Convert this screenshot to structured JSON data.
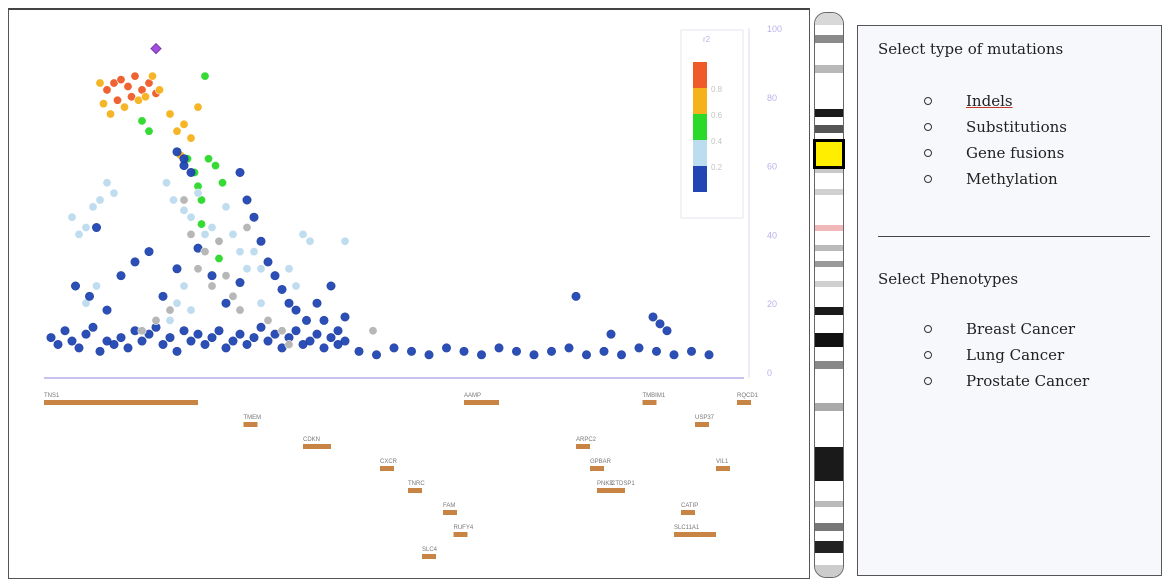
{
  "mutation_panel": {
    "title": "Select type of mutations",
    "options": [
      {
        "label": "Indels",
        "active": true
      },
      {
        "label": "Substitutions",
        "active": false
      },
      {
        "label": "Gene fusions",
        "active": false
      },
      {
        "label": "Methylation",
        "active": false
      }
    ]
  },
  "phenotype_panel": {
    "title": "Select Phenotypes",
    "options": [
      {
        "label": "Breast Cancer"
      },
      {
        "label": "Lung Cancer"
      },
      {
        "label": "Prostate Cancer"
      }
    ]
  },
  "colors": {
    "r2_high": "#ef5a28",
    "r2_mid_high": "#f6b21b",
    "r2_mid": "#2bd92b",
    "r2_low": "#bcdcef",
    "r2_lowest": "#2146b4",
    "grey": "#b4b4b4",
    "lead_snp": "#a44ee0",
    "gene_bar": "#c88444",
    "selection_marker": "#ffee00"
  },
  "chart_data": {
    "type": "scatter",
    "title": "",
    "xlabel": "",
    "ylabel": "",
    "ylim": [
      0,
      100
    ],
    "y_ticks": [
      "100",
      "80",
      "60",
      "40",
      "20",
      "0"
    ],
    "legend": {
      "placement": "top-right",
      "header": "r2",
      "labels": [
        "0.8",
        "0.6",
        "0.4",
        "0.2"
      ]
    },
    "series": [
      {
        "name": "0.8",
        "color": "r2_high",
        "points": [
          [
            2.18,
            82
          ],
          [
            2.2,
            84
          ],
          [
            2.22,
            85
          ],
          [
            2.24,
            83
          ],
          [
            2.26,
            86
          ],
          [
            2.28,
            82
          ],
          [
            2.3,
            84
          ],
          [
            2.32,
            81
          ],
          [
            2.21,
            79
          ],
          [
            2.25,
            80
          ]
        ]
      },
      {
        "name": "0.6",
        "color": "r2_mid_high",
        "points": [
          [
            2.17,
            78
          ],
          [
            2.19,
            75
          ],
          [
            2.23,
            77
          ],
          [
            2.27,
            79
          ],
          [
            2.29,
            80
          ],
          [
            2.31,
            86
          ],
          [
            2.33,
            82
          ],
          [
            2.16,
            84
          ],
          [
            2.36,
            75
          ],
          [
            2.38,
            70
          ],
          [
            2.4,
            72
          ],
          [
            2.42,
            68
          ],
          [
            2.39,
            63
          ],
          [
            2.44,
            77
          ]
        ]
      },
      {
        "name": "0.4",
        "color": "r2_mid",
        "points": [
          [
            2.28,
            73
          ],
          [
            2.3,
            70
          ],
          [
            2.46,
            86
          ],
          [
            2.41,
            62
          ],
          [
            2.43,
            58
          ],
          [
            2.44,
            54
          ],
          [
            2.45,
            50
          ],
          [
            2.47,
            62
          ],
          [
            2.49,
            60
          ],
          [
            2.51,
            55
          ],
          [
            2.45,
            43
          ],
          [
            2.5,
            33
          ]
        ]
      },
      {
        "name": "0.2",
        "color": "r2_low",
        "points": [
          [
            2.08,
            45
          ],
          [
            2.1,
            40
          ],
          [
            2.12,
            42
          ],
          [
            2.14,
            48
          ],
          [
            2.16,
            50
          ],
          [
            2.18,
            55
          ],
          [
            2.2,
            52
          ],
          [
            2.35,
            55
          ],
          [
            2.37,
            50
          ],
          [
            2.4,
            47
          ],
          [
            2.42,
            45
          ],
          [
            2.44,
            52
          ],
          [
            2.46,
            40
          ],
          [
            2.48,
            42
          ],
          [
            2.5,
            38
          ],
          [
            2.52,
            48
          ],
          [
            2.54,
            40
          ],
          [
            2.56,
            35
          ],
          [
            2.58,
            30
          ],
          [
            2.6,
            35
          ],
          [
            2.62,
            30
          ],
          [
            2.7,
            30
          ],
          [
            2.72,
            25
          ],
          [
            2.4,
            25
          ],
          [
            2.38,
            20
          ],
          [
            2.36,
            15
          ],
          [
            2.42,
            18
          ],
          [
            2.15,
            25
          ],
          [
            2.12,
            20
          ],
          [
            2.74,
            40
          ],
          [
            2.76,
            38
          ],
          [
            2.86,
            38
          ],
          [
            2.62,
            20
          ]
        ]
      },
      {
        "name": "0.0",
        "color": "r2_lowest",
        "points": [
          [
            2.02,
            10
          ],
          [
            2.04,
            8
          ],
          [
            2.06,
            12
          ],
          [
            2.08,
            9
          ],
          [
            2.1,
            7
          ],
          [
            2.12,
            11
          ],
          [
            2.14,
            13
          ],
          [
            2.16,
            6
          ],
          [
            2.18,
            9
          ],
          [
            2.2,
            8
          ],
          [
            2.22,
            10
          ],
          [
            2.24,
            7
          ],
          [
            2.26,
            12
          ],
          [
            2.28,
            9
          ],
          [
            2.3,
            11
          ],
          [
            2.32,
            13
          ],
          [
            2.34,
            8
          ],
          [
            2.36,
            10
          ],
          [
            2.38,
            6
          ],
          [
            2.4,
            12
          ],
          [
            2.42,
            9
          ],
          [
            2.44,
            11
          ],
          [
            2.46,
            8
          ],
          [
            2.48,
            10
          ],
          [
            2.5,
            12
          ],
          [
            2.52,
            7
          ],
          [
            2.54,
            9
          ],
          [
            2.56,
            11
          ],
          [
            2.58,
            8
          ],
          [
            2.6,
            10
          ],
          [
            2.62,
            13
          ],
          [
            2.64,
            9
          ],
          [
            2.66,
            11
          ],
          [
            2.68,
            7
          ],
          [
            2.7,
            10
          ],
          [
            2.72,
            12
          ],
          [
            2.74,
            8
          ],
          [
            2.76,
            9
          ],
          [
            2.78,
            11
          ],
          [
            2.8,
            7
          ],
          [
            2.82,
            10
          ],
          [
            2.84,
            8
          ],
          [
            2.86,
            9
          ],
          [
            2.9,
            6
          ],
          [
            2.95,
            5
          ],
          [
            3.0,
            7
          ],
          [
            3.05,
            6
          ],
          [
            3.1,
            5
          ],
          [
            3.15,
            7
          ],
          [
            3.2,
            6
          ],
          [
            3.25,
            5
          ],
          [
            3.3,
            7
          ],
          [
            3.35,
            6
          ],
          [
            3.4,
            5
          ],
          [
            3.45,
            6
          ],
          [
            3.5,
            7
          ],
          [
            3.55,
            5
          ],
          [
            3.6,
            6
          ],
          [
            3.65,
            5
          ],
          [
            3.7,
            7
          ],
          [
            3.75,
            6
          ],
          [
            3.8,
            5
          ],
          [
            3.85,
            6
          ],
          [
            3.9,
            5
          ],
          [
            2.09,
            25
          ],
          [
            2.13,
            22
          ],
          [
            2.18,
            18
          ],
          [
            2.22,
            28
          ],
          [
            2.26,
            32
          ],
          [
            2.3,
            35
          ],
          [
            2.34,
            22
          ],
          [
            2.38,
            30
          ],
          [
            2.4,
            60
          ],
          [
            2.44,
            36
          ],
          [
            2.48,
            28
          ],
          [
            2.52,
            20
          ],
          [
            2.56,
            26
          ],
          [
            2.62,
            38
          ],
          [
            2.64,
            32
          ],
          [
            2.66,
            28
          ],
          [
            2.68,
            24
          ],
          [
            2.7,
            20
          ],
          [
            2.72,
            18
          ],
          [
            2.75,
            15
          ],
          [
            2.78,
            20
          ],
          [
            2.8,
            15
          ],
          [
            2.82,
            25
          ],
          [
            2.84,
            12
          ],
          [
            2.86,
            16
          ],
          [
            2.4,
            62
          ],
          [
            2.42,
            58
          ],
          [
            2.38,
            64
          ],
          [
            2.6,
            45
          ],
          [
            2.58,
            50
          ],
          [
            3.52,
            22
          ],
          [
            3.62,
            11
          ],
          [
            3.74,
            16
          ],
          [
            3.76,
            14
          ],
          [
            3.78,
            12
          ],
          [
            2.15,
            42
          ],
          [
            2.56,
            58
          ]
        ]
      },
      {
        "name": "grey",
        "color": "grey",
        "points": [
          [
            2.4,
            50
          ],
          [
            2.42,
            40
          ],
          [
            2.46,
            35
          ],
          [
            2.44,
            30
          ],
          [
            2.48,
            25
          ],
          [
            2.5,
            38
          ],
          [
            2.52,
            28
          ],
          [
            2.54,
            22
          ],
          [
            2.32,
            15
          ],
          [
            2.36,
            18
          ],
          [
            2.28,
            12
          ],
          [
            2.58,
            42
          ],
          [
            2.56,
            18
          ],
          [
            2.64,
            15
          ],
          [
            2.68,
            12
          ],
          [
            2.94,
            12
          ],
          [
            2.7,
            8
          ]
        ]
      },
      {
        "name": "lead",
        "color": "lead_snp",
        "points": [
          [
            2.32,
            94
          ]
        ]
      }
    ],
    "genes": [
      {
        "name": "TNS1",
        "start": 2.0,
        "end": 2.44,
        "row": 1
      },
      {
        "name": "TMEM",
        "start": 2.57,
        "end": 2.59,
        "row": 2
      },
      {
        "name": "CDKN",
        "start": 2.74,
        "end": 2.82,
        "row": 3
      },
      {
        "name": "CXCR",
        "start": 2.96,
        "end": 3.0,
        "row": 4
      },
      {
        "name": "TNRC",
        "start": 3.04,
        "end": 3.06,
        "row": 5
      },
      {
        "name": "FAM",
        "start": 3.14,
        "end": 3.18,
        "row": 6
      },
      {
        "name": "RUFY4",
        "start": 3.17,
        "end": 3.19,
        "row": 7
      },
      {
        "name": "SLC4",
        "start": 3.08,
        "end": 3.12,
        "row": 8
      },
      {
        "name": "ARPC2",
        "start": 3.52,
        "end": 3.54,
        "row": 3
      },
      {
        "name": "GPBAR",
        "start": 3.56,
        "end": 3.58,
        "row": 4
      },
      {
        "name": "AAMP",
        "start": 3.2,
        "end": 3.3,
        "row": 1
      },
      {
        "name": "PNKD",
        "start": 3.58,
        "end": 3.6,
        "row": 5
      },
      {
        "name": "TMBIM1",
        "start": 3.71,
        "end": 3.75,
        "row": 1
      },
      {
        "name": "CATIP",
        "start": 3.82,
        "end": 3.84,
        "row": 6
      },
      {
        "name": "SLC11A1",
        "start": 3.8,
        "end": 3.92,
        "row": 7
      },
      {
        "name": "CTDSP1",
        "start": 3.62,
        "end": 3.66,
        "row": 5
      },
      {
        "name": "VIL1",
        "start": 3.92,
        "end": 3.95,
        "row": 4
      },
      {
        "name": "USP37",
        "start": 3.86,
        "end": 3.88,
        "row": 2
      },
      {
        "name": "RQCD1",
        "start": 3.98,
        "end": 4.0,
        "row": 1
      }
    ]
  }
}
